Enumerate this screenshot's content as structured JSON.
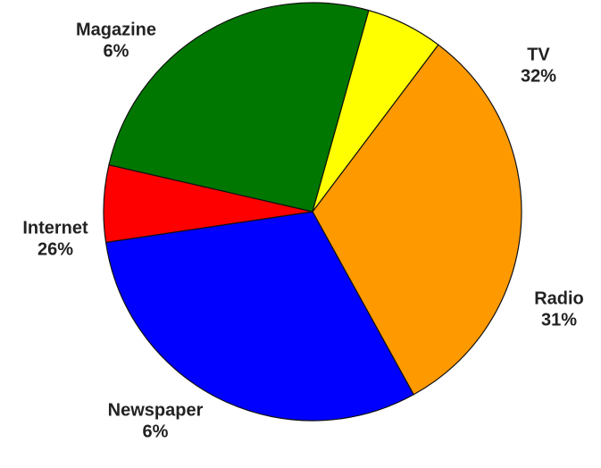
{
  "chart_data": {
    "type": "pie",
    "title": "",
    "start_angle_deg": -53,
    "direction": "clockwise",
    "slices": [
      {
        "label": "TV",
        "value_text": "32%",
        "value": 32,
        "color": "#ff9900"
      },
      {
        "label": "Radio",
        "value_text": "31%",
        "value": 31,
        "color": "#0000ff"
      },
      {
        "label": "Newspaper",
        "value_text": "6%",
        "value": 6,
        "color": "#ff0000"
      },
      {
        "label": "Internet",
        "value_text": "26%",
        "value": 26,
        "color": "#007700"
      },
      {
        "label": "Magazine",
        "value_text": "6%",
        "value": 6,
        "color": "#ffff00"
      }
    ]
  }
}
